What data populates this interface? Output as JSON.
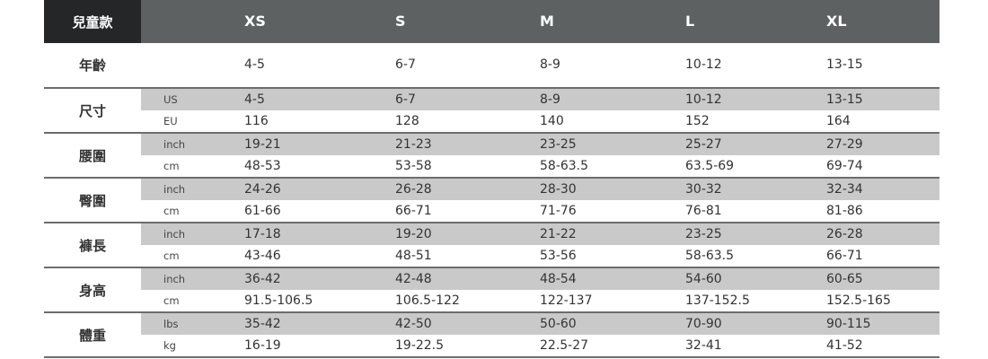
{
  "header": {
    "title": "兒童款",
    "sizes": [
      "XS",
      "S",
      "M",
      "L",
      "XL"
    ]
  },
  "age": {
    "label": "年齡",
    "values": [
      "4-5",
      "6-7",
      "8-9",
      "10-12",
      "13-15"
    ]
  },
  "groups": [
    {
      "label": "尺寸",
      "rows": [
        {
          "unit": "US",
          "values": [
            "4-5",
            "6-7",
            "8-9",
            "10-12",
            "13-15"
          ]
        },
        {
          "unit": "EU",
          "values": [
            "116",
            "128",
            "140",
            "152",
            "164"
          ]
        }
      ]
    },
    {
      "label": "腰圍",
      "rows": [
        {
          "unit": "inch",
          "values": [
            "19-21",
            "21-23",
            "23-25",
            "25-27",
            "27-29"
          ]
        },
        {
          "unit": "cm",
          "values": [
            "48-53",
            "53-58",
            "58-63.5",
            "63.5-69",
            "69-74"
          ]
        }
      ]
    },
    {
      "label": "臀圍",
      "rows": [
        {
          "unit": "inch",
          "values": [
            "24-26",
            "26-28",
            "28-30",
            "30-32",
            "32-34"
          ]
        },
        {
          "unit": "cm",
          "values": [
            "61-66",
            "66-71",
            "71-76",
            "76-81",
            "81-86"
          ]
        }
      ]
    },
    {
      "label": "褲長",
      "rows": [
        {
          "unit": "inch",
          "values": [
            "17-18",
            "19-20",
            "21-22",
            "23-25",
            "26-28"
          ]
        },
        {
          "unit": "cm",
          "values": [
            "43-46",
            "48-51",
            "53-56",
            "58-63.5",
            "66-71"
          ]
        }
      ]
    },
    {
      "label": "身高",
      "rows": [
        {
          "unit": "inch",
          "values": [
            "36-42",
            "42-48",
            "48-54",
            "54-60",
            "60-65"
          ]
        },
        {
          "unit": "cm",
          "values": [
            "91.5-106.5",
            "106.5-122",
            "122-137",
            "137-152.5",
            "152.5-165"
          ]
        }
      ]
    },
    {
      "label": "體重",
      "rows": [
        {
          "unit": "lbs",
          "values": [
            "35-42",
            "42-50",
            "50-60",
            "70-90",
            "90-115"
          ]
        },
        {
          "unit": "kg",
          "values": [
            "16-19",
            "19-22.5",
            "22.5-27",
            "32-41",
            "41-52"
          ]
        }
      ]
    }
  ]
}
